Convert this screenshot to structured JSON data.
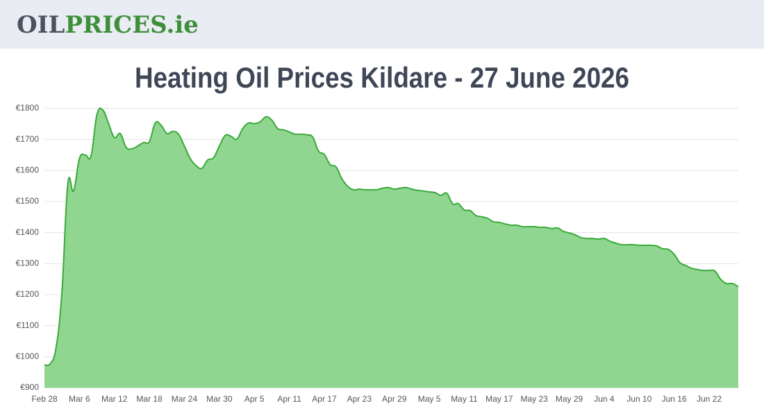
{
  "header": {
    "logo": [
      "OIL",
      "PRICES.ie"
    ]
  },
  "chart_data": {
    "type": "area",
    "title": "Heating Oil Prices Kildare - 27 June 2026",
    "color": "#3aaa3a",
    "fill": "#90d590",
    "grid": true,
    "ylim": [
      900,
      1800
    ],
    "yticks": [
      {
        "value": 900,
        "label": "€900"
      },
      {
        "value": 1000,
        "label": "€1000"
      },
      {
        "value": 1100,
        "label": "€1100"
      },
      {
        "value": 1200,
        "label": "€1200"
      },
      {
        "value": 1300,
        "label": "€1300"
      },
      {
        "value": 1400,
        "label": "€1400"
      },
      {
        "value": 1500,
        "label": "€1500"
      },
      {
        "value": 1600,
        "label": "€1600"
      },
      {
        "value": 1700,
        "label": "€1700"
      },
      {
        "value": 1800,
        "label": "€1800"
      }
    ],
    "categories": [
      "Feb 28",
      null,
      null,
      null,
      null,
      null,
      "Mar 6",
      null,
      null,
      null,
      null,
      null,
      "Mar 12",
      null,
      null,
      null,
      null,
      null,
      "Mar 18",
      null,
      null,
      null,
      null,
      null,
      "Mar 24",
      null,
      null,
      null,
      null,
      null,
      "Mar 30",
      null,
      null,
      null,
      null,
      null,
      "Apr 5",
      null,
      null,
      null,
      null,
      null,
      "Apr 11",
      null,
      null,
      null,
      null,
      null,
      "Apr 17",
      null,
      null,
      null,
      null,
      null,
      "Apr 23",
      null,
      null,
      null,
      null,
      null,
      "Apr 29",
      null,
      null,
      null,
      null,
      null,
      "May 5",
      null,
      null,
      null,
      null,
      null,
      "May 11",
      null,
      null,
      null,
      null,
      null,
      "May 17",
      null,
      null,
      null,
      null,
      null,
      "May 23",
      null,
      null,
      null,
      null,
      null,
      "May 29",
      null,
      null,
      null,
      null,
      null,
      "Jun 4",
      null,
      null,
      null,
      null,
      null,
      "Jun 10",
      null,
      null,
      null,
      null,
      null,
      "Jun 16",
      null,
      null,
      null,
      null,
      null,
      "Jun 22",
      null,
      null,
      null,
      null,
      null
    ],
    "values": [
      974,
      978,
      1030,
      1209,
      1556,
      1534,
      1639,
      1650,
      1648,
      1780,
      1795,
      1751,
      1706,
      1719,
      1675,
      1670,
      1679,
      1690,
      1693,
      1753,
      1746,
      1719,
      1726,
      1717,
      1679,
      1639,
      1616,
      1607,
      1634,
      1641,
      1679,
      1713,
      1710,
      1701,
      1735,
      1753,
      1751,
      1757,
      1773,
      1762,
      1735,
      1731,
      1724,
      1717,
      1717,
      1715,
      1708,
      1663,
      1652,
      1619,
      1612,
      1574,
      1549,
      1538,
      1540,
      1538,
      1538,
      1538,
      1543,
      1545,
      1540,
      1543,
      1545,
      1540,
      1536,
      1534,
      1531,
      1529,
      1520,
      1527,
      1493,
      1493,
      1473,
      1471,
      1455,
      1451,
      1446,
      1435,
      1433,
      1428,
      1424,
      1424,
      1419,
      1419,
      1419,
      1417,
      1417,
      1413,
      1415,
      1404,
      1399,
      1393,
      1384,
      1381,
      1381,
      1379,
      1381,
      1372,
      1366,
      1361,
      1361,
      1361,
      1359,
      1359,
      1359,
      1357,
      1348,
      1346,
      1330,
      1303,
      1294,
      1285,
      1281,
      1278,
      1278,
      1276,
      1249,
      1236,
      1236,
      1226
    ]
  }
}
